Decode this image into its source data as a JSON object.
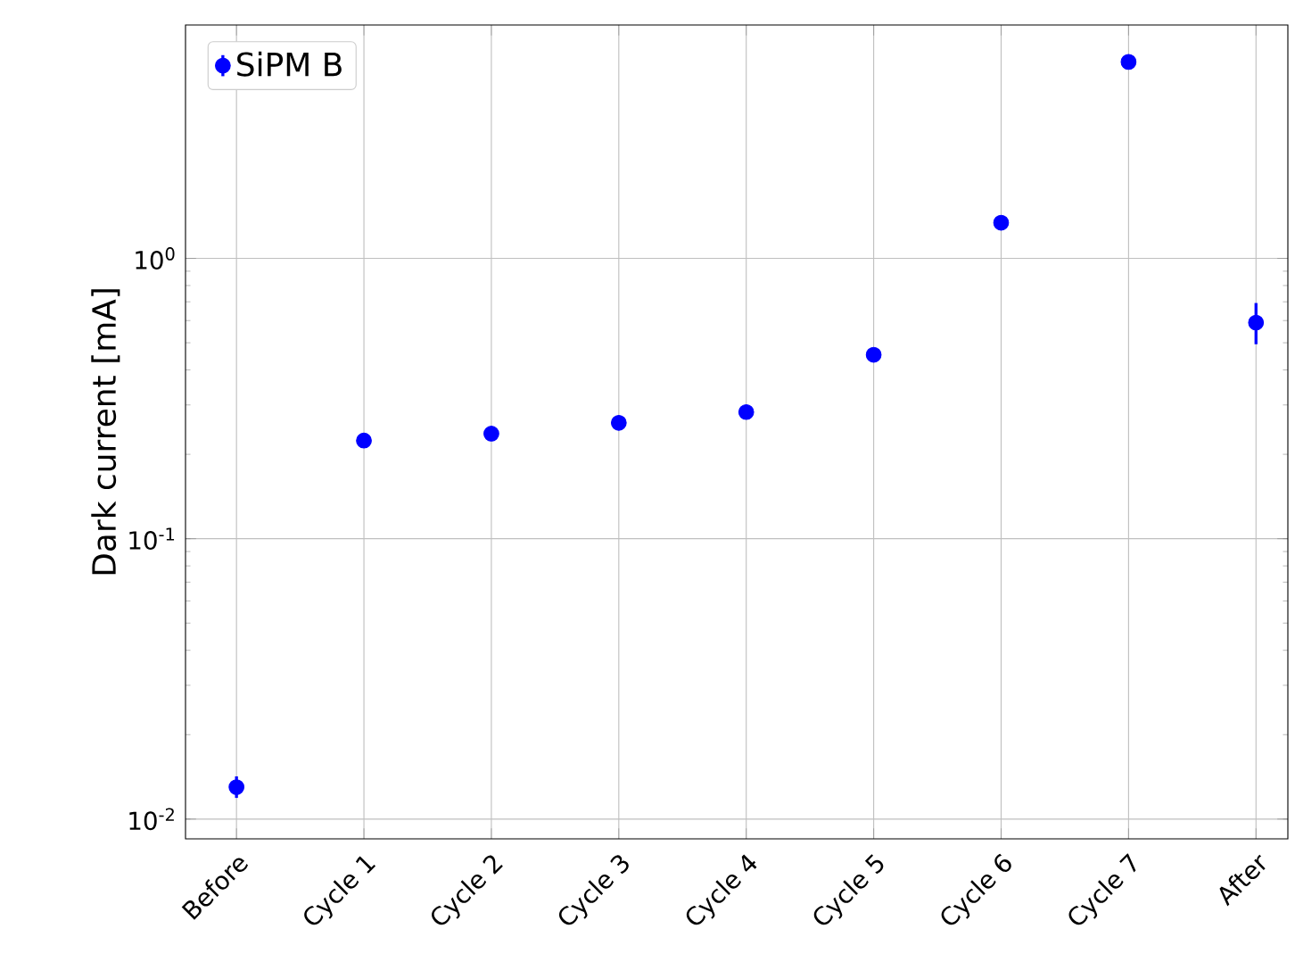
{
  "chart_data": {
    "type": "scatter",
    "ylabel": "Dark current [mA]",
    "categories": [
      "Before",
      "Cycle 1",
      "Cycle 2",
      "Cycle 3",
      "Cycle 4",
      "Cycle 5",
      "Cycle 6",
      "Cycle 7",
      "After"
    ],
    "series": [
      {
        "name": "SiPM B",
        "color": "#0000ff",
        "values": [
          0.013,
          0.224,
          0.237,
          0.259,
          0.283,
          0.453,
          1.34,
          5.02,
          0.59
        ],
        "errors": [
          [
            0.0119,
            0.0142
          ],
          null,
          null,
          null,
          null,
          null,
          null,
          null,
          [
            0.494,
            0.693
          ]
        ]
      }
    ],
    "log": "y",
    "ylim": [
      0.0085,
      6.8
    ],
    "yticks": [
      {
        "value": 0.01,
        "label": "10$^{-2}$"
      },
      {
        "value": 0.1,
        "label": "10$^{-1}$"
      },
      {
        "value": 1,
        "label": "10$^{0}$"
      }
    ],
    "grid": true,
    "legend": "top left",
    "marker": "circle"
  }
}
